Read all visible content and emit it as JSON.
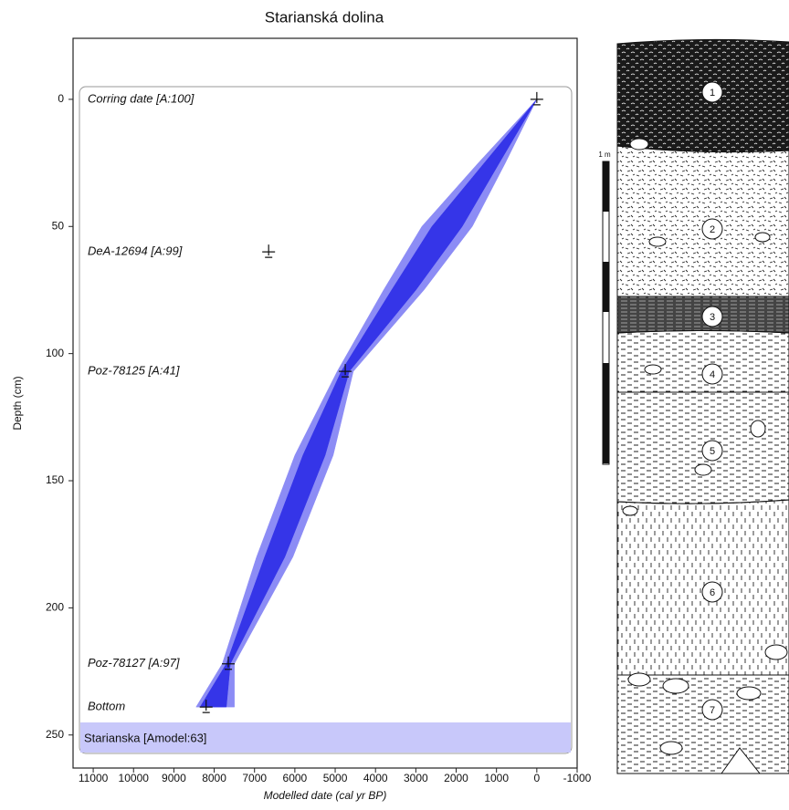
{
  "chart_data": {
    "type": "agedepth",
    "title": "Starianská dolina",
    "xlabel": "Modelled date (cal yr BP)",
    "ylabel": "Depth (cm)",
    "xlim": [
      11500,
      -1000
    ],
    "ylim": [
      -24,
      263
    ],
    "xticks": [
      11000,
      10000,
      9000,
      8000,
      7000,
      6000,
      5000,
      4000,
      3000,
      2000,
      1000,
      0,
      -1000
    ],
    "yticks": [
      0,
      50,
      100,
      150,
      200,
      250
    ],
    "bands": [
      {
        "color": "#8c8cf5",
        "depth": [
          0,
          25,
          50,
          75,
          107,
          140,
          180,
          222,
          239
        ],
        "older": [
          0,
          1450,
          2850,
          3800,
          4950,
          6000,
          6950,
          7800,
          8450
        ],
        "younger": [
          0,
          780,
          1600,
          2800,
          4550,
          5050,
          6050,
          7500,
          7500
        ]
      },
      {
        "color": "#3535e8",
        "depth": [
          0,
          25,
          50,
          75,
          107,
          140,
          180,
          222,
          239
        ],
        "older": [
          0,
          1300,
          2600,
          3600,
          4850,
          5800,
          6750,
          7700,
          8350
        ],
        "younger": [
          0,
          930,
          1850,
          3000,
          4650,
          5250,
          6250,
          7600,
          7700
        ]
      }
    ],
    "points": {
      "labels": [
        "Corring date [A:100]",
        "DeA-12694 [A:99]",
        "Poz-78125 [A:41]",
        "Poz-78127 [A:97]",
        "Bottom"
      ],
      "x": [
        0,
        6650,
        4750,
        7650,
        8200
      ],
      "y": [
        0,
        60,
        107,
        222,
        239
      ]
    },
    "model_label": "Starianska [Amodel:63]"
  },
  "section": {
    "scale_label": "1 m",
    "layers": [
      "1",
      "2",
      "3",
      "4",
      "5",
      "6",
      "7"
    ]
  }
}
